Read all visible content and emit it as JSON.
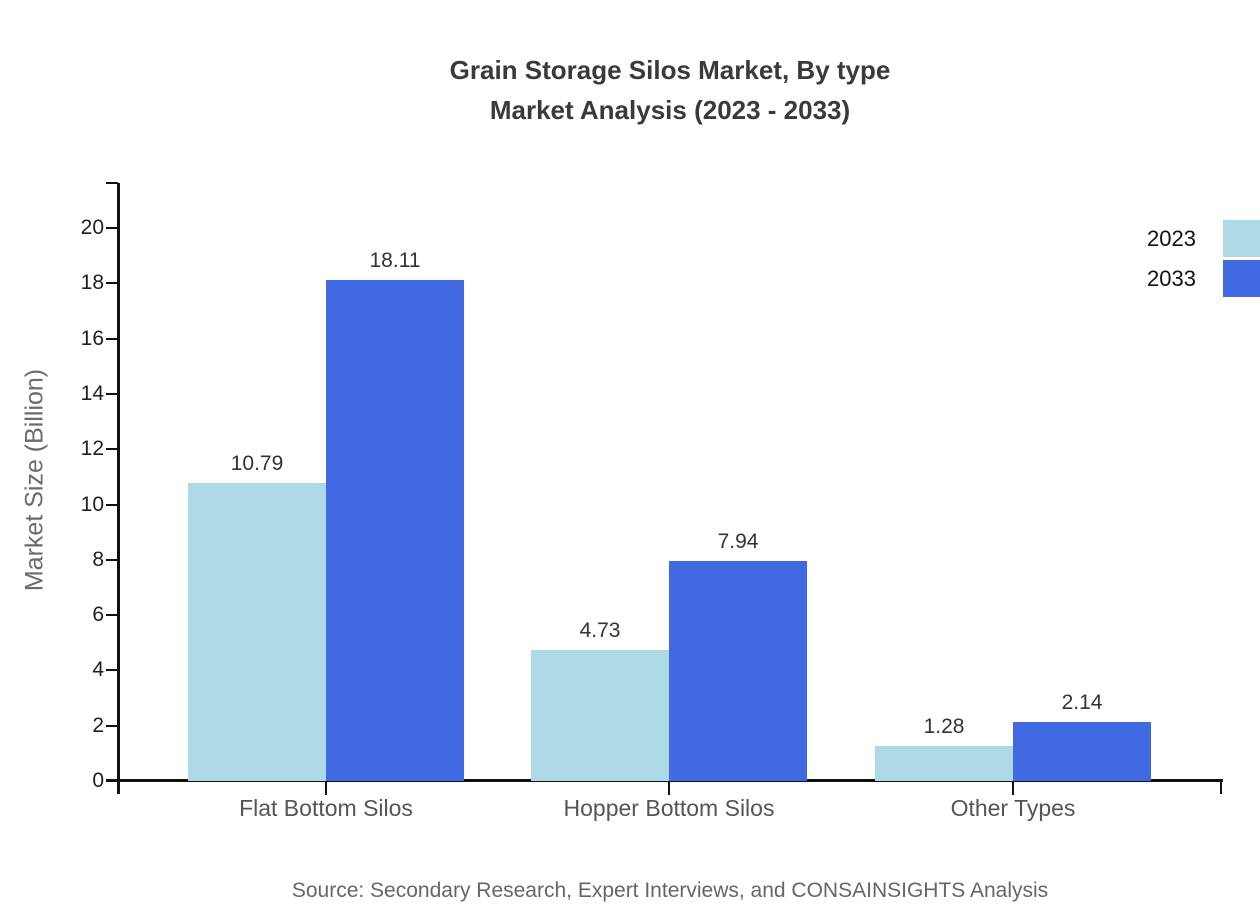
{
  "title": {
    "line1": "Grain Storage Silos Market, By type",
    "line2": "Market Analysis (2023 - 2033)"
  },
  "source": "Source: Secondary Research, Expert Interviews, and CONSAINSIGHTS Analysis",
  "chart_data": {
    "type": "bar",
    "title": "Grain Storage Silos Market, By type Market Analysis (2023 - 2033)",
    "categories": [
      "Flat Bottom Silos",
      "Hopper Bottom Silos",
      "Other Types"
    ],
    "series": [
      {
        "name": "2023",
        "color": "#ADD8E6",
        "values": [
          10.79,
          4.73,
          1.28
        ]
      },
      {
        "name": "2033",
        "color": "#4169E1",
        "values": [
          18.11,
          7.94,
          2.14
        ]
      }
    ],
    "xlabel": "",
    "ylabel": "Market Size (Billion)",
    "ylim": [
      0,
      20
    ],
    "ytick_step": 2,
    "grid": false,
    "legend_position": "top-right",
    "value_labels": true
  }
}
